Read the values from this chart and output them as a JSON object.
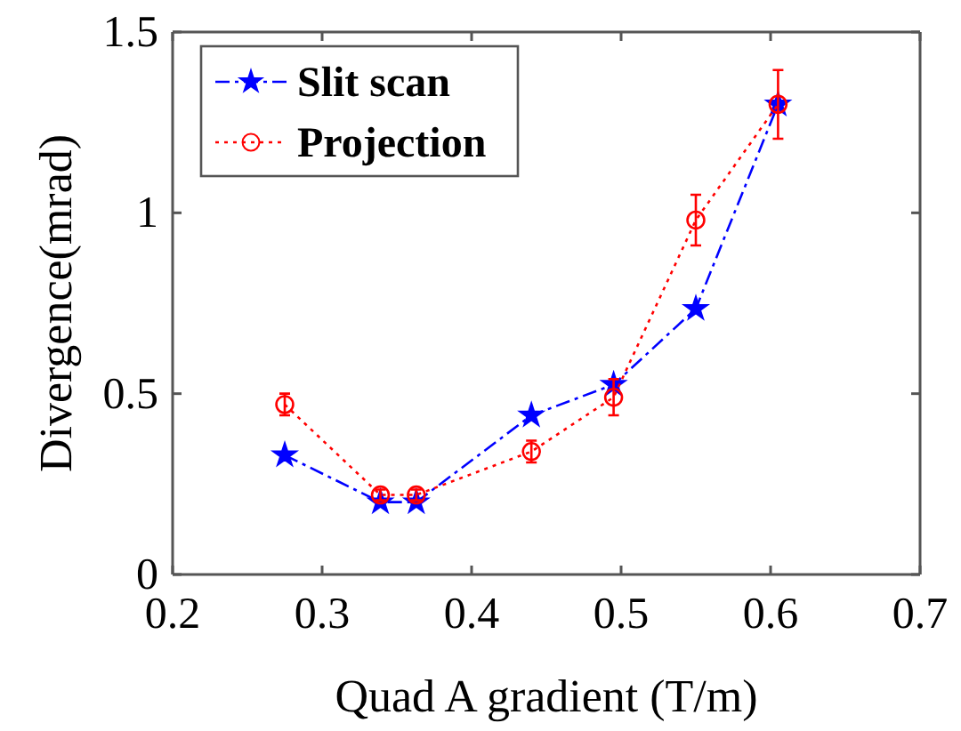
{
  "chart_data": {
    "type": "line",
    "xlabel": "Quad A gradient (T/m)",
    "ylabel": "Divergence(mrad)",
    "xlim": [
      0.2,
      0.7
    ],
    "xticks": [
      0.2,
      0.3,
      0.4,
      0.5,
      0.6,
      0.7
    ],
    "ylim": [
      0,
      1.5
    ],
    "yticks": [
      0,
      0.5,
      1,
      1.5
    ],
    "legend": "top left",
    "grid": false,
    "series": [
      {
        "name": "Slit scan",
        "color": "#0000ff",
        "marker": "star",
        "line_style": "dashed",
        "x": [
          0.275,
          0.339,
          0.363,
          0.44,
          0.495,
          0.55,
          0.605
        ],
        "values": [
          0.33,
          0.2,
          0.2,
          0.44,
          0.525,
          0.735,
          1.3
        ]
      },
      {
        "name": "Projection",
        "color": "#ff0000",
        "marker": "circle",
        "line_style": "dotted",
        "x": [
          0.275,
          0.339,
          0.363,
          0.44,
          0.495,
          0.55,
          0.605
        ],
        "values": [
          0.47,
          0.22,
          0.22,
          0.34,
          0.49,
          0.98,
          1.3
        ],
        "errors": [
          0.03,
          0.015,
          0.015,
          0.03,
          0.05,
          0.07,
          0.095
        ]
      }
    ]
  }
}
